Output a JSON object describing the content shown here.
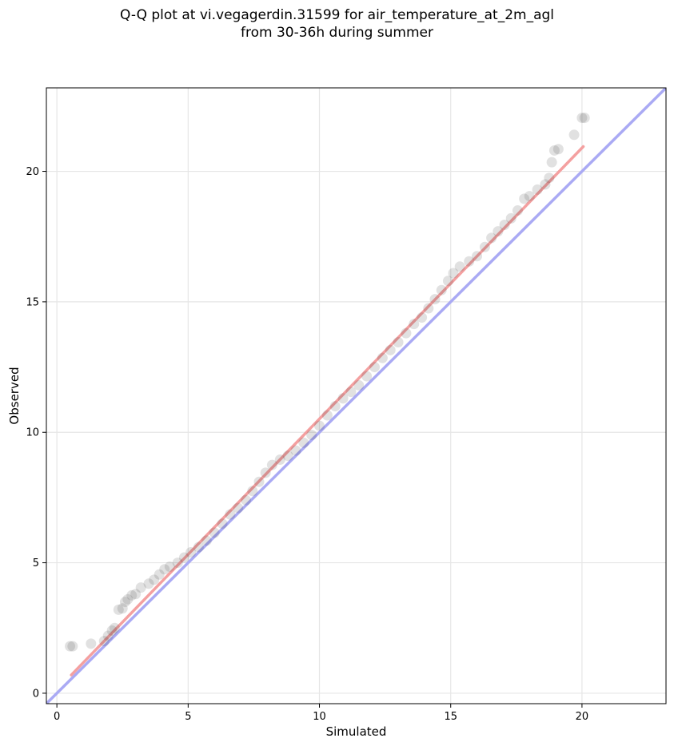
{
  "chart_data": {
    "type": "scatter",
    "title": "Q-Q plot at vi.vegagerdin.31599 for air_temperature_at_2m_agl\nfrom 30-36h during summer",
    "xlabel": "Simulated",
    "ylabel": "Observed",
    "xlim": [
      -0.4,
      23.2
    ],
    "ylim": [
      -0.4,
      23.2
    ],
    "xticks": [
      0,
      5,
      10,
      15,
      20
    ],
    "yticks": [
      0,
      5,
      10,
      15,
      20
    ],
    "grid": true,
    "point_color": "#333333",
    "identity_line_color": "#aaaaf4",
    "fit_line_color": "#f4a0a0",
    "identity_line": {
      "x": [
        -0.4,
        23.2
      ],
      "y": [
        -0.4,
        23.2
      ]
    },
    "fit_line": {
      "x": [
        0.55,
        20.05
      ],
      "y": [
        0.7,
        20.95
      ]
    },
    "points": [
      {
        "x": 0.5,
        "y": 1.8
      },
      {
        "x": 0.6,
        "y": 1.8
      },
      {
        "x": 1.3,
        "y": 1.9
      },
      {
        "x": 1.8,
        "y": 2.0
      },
      {
        "x": 1.95,
        "y": 2.2
      },
      {
        "x": 2.1,
        "y": 2.4
      },
      {
        "x": 2.2,
        "y": 2.5
      },
      {
        "x": 2.35,
        "y": 3.2
      },
      {
        "x": 2.5,
        "y": 3.25
      },
      {
        "x": 2.6,
        "y": 3.5
      },
      {
        "x": 2.7,
        "y": 3.6
      },
      {
        "x": 2.85,
        "y": 3.75
      },
      {
        "x": 3.0,
        "y": 3.8
      },
      {
        "x": 3.2,
        "y": 4.05
      },
      {
        "x": 3.5,
        "y": 4.2
      },
      {
        "x": 3.7,
        "y": 4.35
      },
      {
        "x": 3.9,
        "y": 4.55
      },
      {
        "x": 4.1,
        "y": 4.75
      },
      {
        "x": 4.3,
        "y": 4.85
      },
      {
        "x": 4.6,
        "y": 5.0
      },
      {
        "x": 4.85,
        "y": 5.2
      },
      {
        "x": 5.1,
        "y": 5.4
      },
      {
        "x": 5.4,
        "y": 5.6
      },
      {
        "x": 5.7,
        "y": 5.85
      },
      {
        "x": 6.0,
        "y": 6.15
      },
      {
        "x": 6.3,
        "y": 6.5
      },
      {
        "x": 6.6,
        "y": 6.85
      },
      {
        "x": 6.9,
        "y": 7.1
      },
      {
        "x": 7.2,
        "y": 7.4
      },
      {
        "x": 7.45,
        "y": 7.75
      },
      {
        "x": 7.7,
        "y": 8.1
      },
      {
        "x": 7.95,
        "y": 8.45
      },
      {
        "x": 8.2,
        "y": 8.75
      },
      {
        "x": 8.5,
        "y": 8.95
      },
      {
        "x": 8.8,
        "y": 9.1
      },
      {
        "x": 9.1,
        "y": 9.3
      },
      {
        "x": 9.4,
        "y": 9.6
      },
      {
        "x": 9.7,
        "y": 9.9
      },
      {
        "x": 10.0,
        "y": 10.25
      },
      {
        "x": 10.3,
        "y": 10.65
      },
      {
        "x": 10.6,
        "y": 11.0
      },
      {
        "x": 10.9,
        "y": 11.3
      },
      {
        "x": 11.2,
        "y": 11.55
      },
      {
        "x": 11.5,
        "y": 11.8
      },
      {
        "x": 11.8,
        "y": 12.15
      },
      {
        "x": 12.1,
        "y": 12.5
      },
      {
        "x": 12.4,
        "y": 12.85
      },
      {
        "x": 12.7,
        "y": 13.15
      },
      {
        "x": 13.0,
        "y": 13.45
      },
      {
        "x": 13.3,
        "y": 13.8
      },
      {
        "x": 13.6,
        "y": 14.15
      },
      {
        "x": 13.9,
        "y": 14.4
      },
      {
        "x": 14.15,
        "y": 14.75
      },
      {
        "x": 14.4,
        "y": 15.1
      },
      {
        "x": 14.65,
        "y": 15.45
      },
      {
        "x": 14.9,
        "y": 15.8
      },
      {
        "x": 15.1,
        "y": 16.1
      },
      {
        "x": 15.35,
        "y": 16.35
      },
      {
        "x": 15.7,
        "y": 16.55
      },
      {
        "x": 16.0,
        "y": 16.75
      },
      {
        "x": 16.3,
        "y": 17.1
      },
      {
        "x": 16.55,
        "y": 17.45
      },
      {
        "x": 16.8,
        "y": 17.7
      },
      {
        "x": 17.05,
        "y": 17.95
      },
      {
        "x": 17.3,
        "y": 18.2
      },
      {
        "x": 17.55,
        "y": 18.5
      },
      {
        "x": 17.8,
        "y": 18.95
      },
      {
        "x": 18.0,
        "y": 19.05
      },
      {
        "x": 18.3,
        "y": 19.3
      },
      {
        "x": 18.6,
        "y": 19.5
      },
      {
        "x": 18.75,
        "y": 19.75
      },
      {
        "x": 18.85,
        "y": 20.35
      },
      {
        "x": 18.95,
        "y": 20.8
      },
      {
        "x": 19.1,
        "y": 20.85
      },
      {
        "x": 19.7,
        "y": 21.4
      },
      {
        "x": 20.0,
        "y": 22.05
      },
      {
        "x": 20.1,
        "y": 22.05
      }
    ]
  }
}
